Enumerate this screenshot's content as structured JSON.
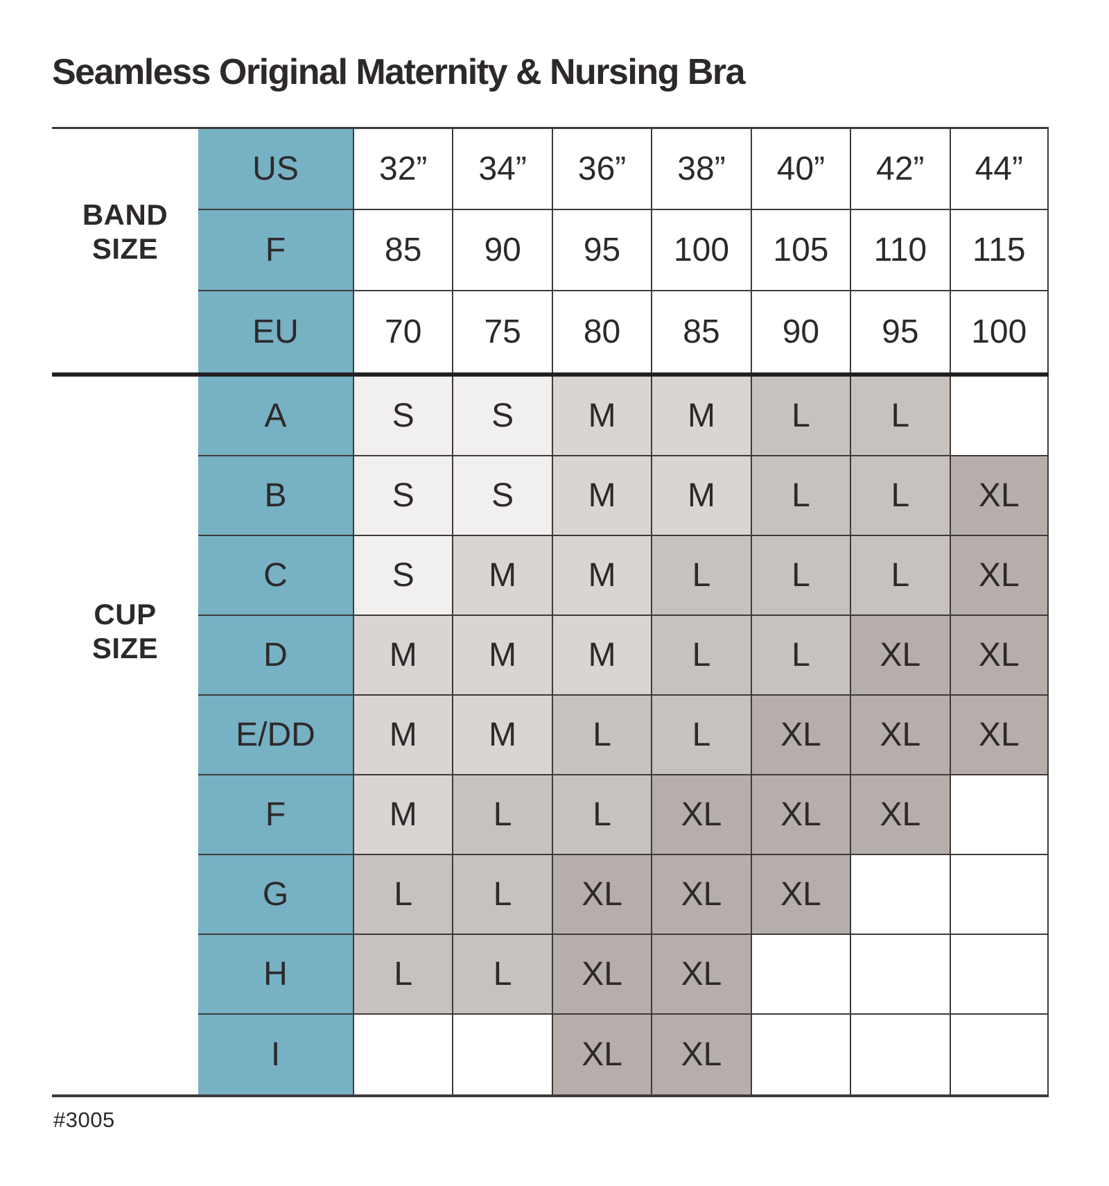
{
  "title": "Seamless Original Maternity & Nursing Bra",
  "footnote": "#3005",
  "colors": {
    "teal": "#77b1c4",
    "line": "#3e3a39",
    "divider": "#232021",
    "text": "#2d292a",
    "size_S": "#f1f0ee",
    "size_M": "#dad5d2",
    "size_L": "#c8c2bf",
    "size_XL": "#b5aeab",
    "blank": "#ffffff"
  },
  "chart_data": {
    "type": "table",
    "title": "Seamless Original Maternity & Nursing Bra",
    "legend_note": "cell shading encodes garment size: S lightest to XL darkest",
    "band_section": {
      "label_line1": "BAND",
      "label_line2": "SIZE",
      "rows": [
        {
          "label": "US",
          "values": [
            "32”",
            "34”",
            "36”",
            "38”",
            "40”",
            "42”",
            "44”"
          ]
        },
        {
          "label": "F",
          "values": [
            "85",
            "90",
            "95",
            "100",
            "105",
            "110",
            "115"
          ]
        },
        {
          "label": "EU",
          "values": [
            "70",
            "75",
            "80",
            "85",
            "90",
            "95",
            "100"
          ]
        }
      ]
    },
    "cup_section": {
      "label_line1": "CUP",
      "label_line2": "SIZE",
      "rows": [
        {
          "label": "A",
          "values": [
            "S",
            "S",
            "M",
            "M",
            "L",
            "L",
            ""
          ]
        },
        {
          "label": "B",
          "values": [
            "S",
            "S",
            "M",
            "M",
            "L",
            "L",
            "XL"
          ]
        },
        {
          "label": "C",
          "values": [
            "S",
            "M",
            "M",
            "L",
            "L",
            "L",
            "XL"
          ]
        },
        {
          "label": "D",
          "values": [
            "M",
            "M",
            "M",
            "L",
            "L",
            "XL",
            "XL"
          ]
        },
        {
          "label": "E/DD",
          "values": [
            "M",
            "M",
            "L",
            "L",
            "XL",
            "XL",
            "XL"
          ]
        },
        {
          "label": "F",
          "values": [
            "M",
            "L",
            "L",
            "XL",
            "XL",
            "XL",
            ""
          ]
        },
        {
          "label": "G",
          "values": [
            "L",
            "L",
            "XL",
            "XL",
            "XL",
            "",
            ""
          ]
        },
        {
          "label": "H",
          "values": [
            "L",
            "L",
            "XL",
            "XL",
            "",
            "",
            ""
          ]
        },
        {
          "label": "I",
          "values": [
            "",
            "",
            "XL",
            "XL",
            "",
            "",
            ""
          ]
        }
      ]
    }
  }
}
